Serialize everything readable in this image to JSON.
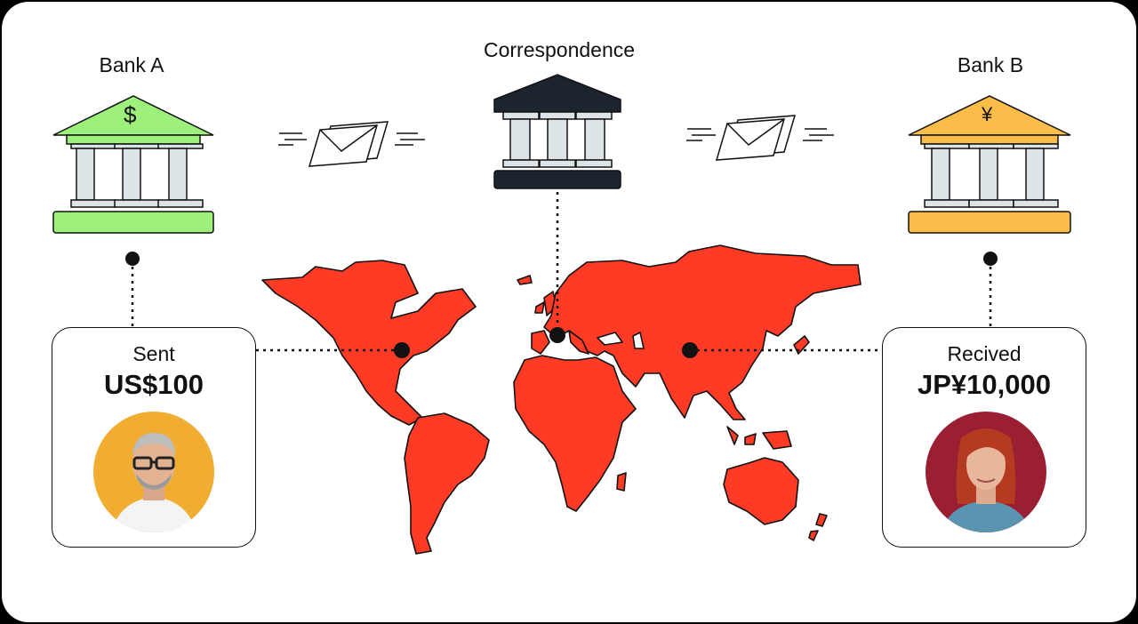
{
  "banks": {
    "left": {
      "label": "Bank A",
      "symbol": "$",
      "color": "#9df07c"
    },
    "middle": {
      "label": "Correspondence",
      "color": "#1c2430"
    },
    "right": {
      "label": "Bank B",
      "symbol": "¥",
      "color": "#fbbd4a"
    }
  },
  "sender": {
    "caption": "Sent",
    "amount": "US$100",
    "avatar_bg": "#f0ad32"
  },
  "receiver": {
    "caption": "Recived",
    "amount": "JP¥10,000",
    "avatar_bg": "#9b1f33"
  },
  "map_color": "#ff3b26",
  "icons": [
    "bank-icon",
    "envelope-icon",
    "world-map",
    "person-avatar"
  ]
}
